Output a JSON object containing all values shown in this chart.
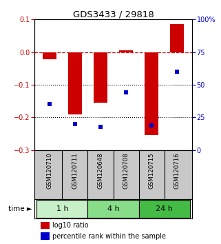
{
  "title": "GDS3433 / 29818",
  "samples": [
    "GSM120710",
    "GSM120711",
    "GSM120648",
    "GSM120708",
    "GSM120715",
    "GSM120716"
  ],
  "log10_ratio": [
    -0.022,
    -0.19,
    -0.155,
    0.005,
    -0.255,
    0.085
  ],
  "percentile_rank": [
    35,
    20,
    18,
    44,
    19,
    60
  ],
  "groups": [
    {
      "label": "1 h",
      "indices": [
        0,
        1
      ],
      "color": "#c8f0c8"
    },
    {
      "label": "4 h",
      "indices": [
        2,
        3
      ],
      "color": "#88dd88"
    },
    {
      "label": "24 h",
      "indices": [
        4,
        5
      ],
      "color": "#44bb44"
    }
  ],
  "bar_color": "#cc0000",
  "dot_color": "#0000cc",
  "left_ylim": [
    -0.3,
    0.1
  ],
  "left_yticks": [
    0.1,
    0.0,
    -0.1,
    -0.2,
    -0.3
  ],
  "right_ylim": [
    0,
    100
  ],
  "right_yticks": [
    0,
    25,
    50,
    75,
    100
  ],
  "right_yticklabels": [
    "0",
    "25",
    "50",
    "75",
    "100%"
  ],
  "hline_color": "#cc0000",
  "hline_style": "--",
  "dotted_lines": [
    -0.1,
    -0.2
  ],
  "bg_color": "#ffffff",
  "sample_box_color": "#c8c8c8",
  "legend_red_label": "log10 ratio",
  "legend_blue_label": "percentile rank within the sample"
}
